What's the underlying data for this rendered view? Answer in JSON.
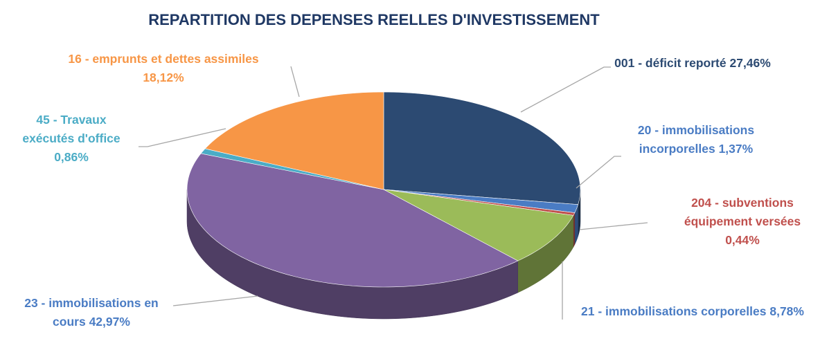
{
  "chart_data": {
    "type": "pie",
    "title": "REPARTITION DES DEPENSES REELLES D'INVESTISSEMENT",
    "categories": [
      "001 - déficit reporté",
      "20 - immobilisations incorporelles",
      "204 - subventions équipement versées",
      "21 - immobilisations corporelles",
      "23 - immobilisations en cours",
      "45 - Travaux exécutés d'office",
      "16 - emprunts et dettes assimiles"
    ],
    "values": [
      27.46,
      1.37,
      0.44,
      8.78,
      42.97,
      0.86,
      18.12
    ],
    "value_labels": [
      "27,46%",
      "1,37%",
      "0,44%",
      "8,78%",
      "42,97%",
      "0,86%",
      "18,12%"
    ],
    "colors": [
      "#2c4a72",
      "#4a7cc4",
      "#c0504d",
      "#9bbb59",
      "#8064a2",
      "#4bacc6",
      "#f79646"
    ]
  }
}
